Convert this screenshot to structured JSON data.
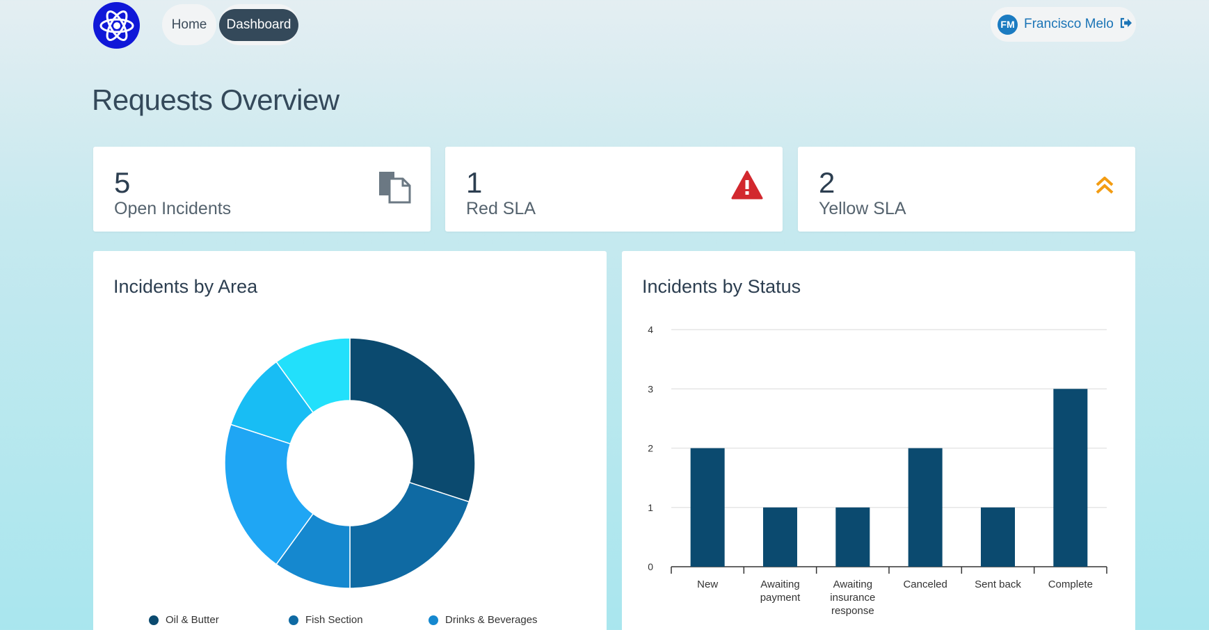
{
  "nav": {
    "home_label": "Home",
    "dashboard_label": "Dashboard"
  },
  "user": {
    "initials": "FM",
    "name": "Francisco Melo",
    "logout_icon": "sign-out-icon"
  },
  "page_title": "Requests Overview",
  "kpis": [
    {
      "value": "5",
      "label": "Open Incidents",
      "icon": "documents-icon"
    },
    {
      "value": "1",
      "label": "Red SLA",
      "icon": "warning-triangle-icon",
      "icon_color": "#d2282e"
    },
    {
      "value": "2",
      "label": "Yellow SLA",
      "icon": "double-chevron-up-icon",
      "icon_color": "#f39c12"
    }
  ],
  "area_card": {
    "title": "Incidents by Area"
  },
  "status_card": {
    "title": "Incidents by Status"
  },
  "chart_data": [
    {
      "type": "pie",
      "donut": true,
      "title": "Incidents by Area",
      "slices": [
        {
          "name": "Oil & Butter",
          "value": 30,
          "color": "#0b4a6f"
        },
        {
          "name": "Fish Section",
          "value": 20,
          "color": "#0f6aa3"
        },
        {
          "name": "Drinks & Beverages",
          "value": 10,
          "color": "#1588cf"
        },
        {
          "name": "",
          "value": 20,
          "color": "#1fa6f4"
        },
        {
          "name": "",
          "value": 10,
          "color": "#18bdf4"
        },
        {
          "name": "",
          "value": 10,
          "color": "#22e0fb"
        }
      ],
      "legend": [
        "Oil & Butter",
        "Fish Section",
        "Drinks & Beverages"
      ],
      "legend_colors": [
        "#0b4a6f",
        "#0f6aa3",
        "#1588cf"
      ],
      "legend_position": "bottom"
    },
    {
      "type": "bar",
      "title": "Incidents by Status",
      "categories": [
        "New",
        "Awaiting payment",
        "Awaiting insurance response",
        "Canceled",
        "Sent back",
        "Complete"
      ],
      "category_lines": [
        [
          "New"
        ],
        [
          "Awaiting",
          "payment"
        ],
        [
          "Awaiting",
          "insurance",
          "response"
        ],
        [
          "Canceled"
        ],
        [
          "Sent back"
        ],
        [
          "Complete"
        ]
      ],
      "values": [
        2,
        1,
        1,
        2,
        1,
        3
      ],
      "ylim": [
        0,
        4
      ],
      "yticks": [
        0,
        1,
        2,
        3,
        4
      ],
      "grid": true,
      "bar_color": "#0b4a6f"
    }
  ]
}
